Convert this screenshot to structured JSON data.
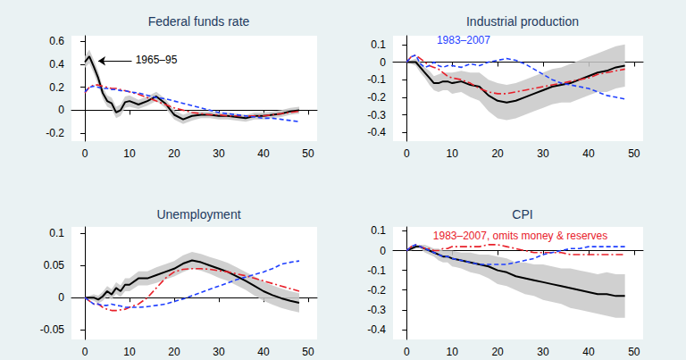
{
  "chart_data": [
    {
      "type": "line",
      "title": "Federal funds rate",
      "x": [
        0,
        1,
        2,
        3,
        4,
        5,
        6,
        7,
        8,
        9,
        10,
        12,
        14,
        16,
        18,
        20,
        22,
        24,
        26,
        28,
        30,
        32,
        34,
        36,
        38,
        40,
        42,
        44,
        46,
        48
      ],
      "xlim": [
        -3,
        52
      ],
      "xticks": [
        0,
        10,
        20,
        30,
        40,
        50
      ],
      "ylim": [
        -0.27,
        0.65
      ],
      "yticks": [
        -0.2,
        0,
        0.2,
        0.4,
        0.6
      ],
      "grid": false,
      "series": [
        {
          "color": "#000000",
          "line_style": "solid",
          "values": [
            0.42,
            0.47,
            0.38,
            0.28,
            0.15,
            0.08,
            0.06,
            -0.02,
            0.0,
            0.07,
            0.08,
            0.05,
            0.08,
            0.12,
            0.06,
            -0.04,
            -0.08,
            -0.05,
            -0.04,
            -0.04,
            -0.05,
            -0.05,
            -0.06,
            -0.07,
            -0.05,
            -0.05,
            -0.04,
            -0.03,
            -0.01,
            0.0
          ],
          "band": {
            "color": "#c8c8c8",
            "lower": [
              0.37,
              0.41,
              0.32,
              0.22,
              0.1,
              0.03,
              0.01,
              -0.07,
              -0.05,
              0.02,
              0.03,
              0.01,
              0.04,
              0.08,
              0.02,
              -0.08,
              -0.12,
              -0.09,
              -0.07,
              -0.07,
              -0.08,
              -0.08,
              -0.09,
              -0.1,
              -0.08,
              -0.08,
              -0.07,
              -0.06,
              -0.04,
              -0.03
            ],
            "upper": [
              0.47,
              0.53,
              0.44,
              0.34,
              0.2,
              0.13,
              0.11,
              0.03,
              0.05,
              0.12,
              0.13,
              0.09,
              0.12,
              0.16,
              0.1,
              0.0,
              -0.04,
              -0.01,
              -0.01,
              -0.01,
              -0.02,
              -0.02,
              -0.03,
              -0.04,
              -0.02,
              -0.02,
              -0.01,
              0.0,
              0.02,
              0.03
            ]
          }
        },
        {
          "color": "#e8202a",
          "line_style": "dashdot",
          "values": [
            0.15,
            0.2,
            0.22,
            0.22,
            0.21,
            0.2,
            0.19,
            0.19,
            0.18,
            0.17,
            0.16,
            0.14,
            0.11,
            0.08,
            0.05,
            0.02,
            0.0,
            -0.02,
            -0.03,
            -0.04,
            -0.04,
            -0.05,
            -0.05,
            -0.05,
            -0.05,
            -0.05,
            -0.04,
            -0.03,
            -0.02,
            -0.01
          ]
        },
        {
          "color": "#1f3fff",
          "line_style": "dashed",
          "values": [
            0.16,
            0.2,
            0.21,
            0.2,
            0.19,
            0.19,
            0.18,
            0.18,
            0.17,
            0.17,
            0.16,
            0.15,
            0.13,
            0.11,
            0.1,
            0.08,
            0.06,
            0.04,
            0.02,
            0.0,
            -0.02,
            -0.03,
            -0.04,
            -0.05,
            -0.06,
            -0.07,
            -0.07,
            -0.08,
            -0.09,
            -0.1
          ]
        }
      ],
      "annotations": [
        {
          "text": "1965–95",
          "x": 16,
          "y": 0.44,
          "color": "#000000",
          "arrow": [
            [
              10.5,
              0.43
            ],
            [
              3,
              0.43
            ]
          ]
        }
      ]
    },
    {
      "type": "line",
      "title": "Industrial production",
      "x": [
        0,
        1,
        2,
        3,
        4,
        5,
        6,
        7,
        8,
        9,
        10,
        12,
        14,
        16,
        18,
        20,
        22,
        24,
        26,
        28,
        30,
        32,
        34,
        36,
        38,
        40,
        42,
        44,
        46,
        48
      ],
      "xlim": [
        -3,
        52
      ],
      "xticks": [
        0,
        10,
        20,
        30,
        40,
        50
      ],
      "ylim": [
        -0.45,
        0.15
      ],
      "yticks": [
        -0.4,
        -0.3,
        -0.2,
        -0.1,
        0,
        0.1
      ],
      "grid": false,
      "series": [
        {
          "color": "#000000",
          "line_style": "solid",
          "values": [
            0,
            0,
            0,
            -0.03,
            -0.06,
            -0.09,
            -0.12,
            -0.12,
            -0.11,
            -0.11,
            -0.12,
            -0.11,
            -0.13,
            -0.14,
            -0.19,
            -0.22,
            -0.23,
            -0.22,
            -0.2,
            -0.18,
            -0.16,
            -0.14,
            -0.13,
            -0.12,
            -0.1,
            -0.08,
            -0.06,
            -0.05,
            -0.03,
            -0.02
          ],
          "band": {
            "color": "#c8c8c8",
            "lower": [
              0,
              -0.01,
              -0.02,
              -0.06,
              -0.09,
              -0.13,
              -0.16,
              -0.17,
              -0.16,
              -0.16,
              -0.18,
              -0.17,
              -0.2,
              -0.22,
              -0.28,
              -0.32,
              -0.33,
              -0.32,
              -0.3,
              -0.28,
              -0.26,
              -0.24,
              -0.23,
              -0.23,
              -0.21,
              -0.19,
              -0.17,
              -0.17,
              -0.15,
              -0.14
            ],
            "upper": [
              0,
              0.01,
              0.02,
              0.0,
              -0.03,
              -0.05,
              -0.08,
              -0.07,
              -0.06,
              -0.06,
              -0.06,
              -0.05,
              -0.06,
              -0.06,
              -0.1,
              -0.12,
              -0.13,
              -0.12,
              -0.1,
              -0.08,
              -0.06,
              -0.04,
              -0.03,
              -0.01,
              0.01,
              0.03,
              0.05,
              0.07,
              0.09,
              0.1
            ]
          }
        },
        {
          "color": "#e8202a",
          "line_style": "dashdot",
          "values": [
            0,
            0.03,
            0.04,
            0.02,
            0.0,
            -0.02,
            -0.03,
            -0.04,
            -0.06,
            -0.08,
            -0.09,
            -0.1,
            -0.12,
            -0.15,
            -0.17,
            -0.18,
            -0.18,
            -0.17,
            -0.16,
            -0.15,
            -0.14,
            -0.13,
            -0.12,
            -0.11,
            -0.1,
            -0.09,
            -0.07,
            -0.06,
            -0.05,
            -0.04
          ]
        },
        {
          "color": "#1f3fff",
          "line_style": "dashed",
          "values": [
            0,
            0.03,
            0.04,
            -0.01,
            -0.03,
            -0.02,
            0.0,
            -0.02,
            -0.03,
            -0.02,
            -0.02,
            -0.03,
            -0.01,
            -0.02,
            0.0,
            0.01,
            0.02,
            0.01,
            -0.01,
            -0.04,
            -0.07,
            -0.1,
            -0.12,
            -0.13,
            -0.14,
            -0.15,
            -0.17,
            -0.19,
            -0.2,
            -0.21
          ]
        }
      ],
      "annotations": [
        {
          "text": "1983–2007",
          "x": 12.5,
          "y": 0.125,
          "color": "#1f3fff"
        }
      ]
    },
    {
      "type": "line",
      "title": "Unemployment",
      "x": [
        0,
        1,
        2,
        3,
        4,
        5,
        6,
        7,
        8,
        9,
        10,
        12,
        14,
        16,
        18,
        20,
        22,
        24,
        26,
        28,
        30,
        32,
        34,
        36,
        38,
        40,
        42,
        44,
        46,
        48
      ],
      "xlim": [
        -3,
        52
      ],
      "xticks": [
        0,
        10,
        20,
        30,
        40,
        50
      ],
      "ylim": [
        -0.065,
        0.11
      ],
      "yticks": [
        -0.05,
        0,
        0.05,
        0.1
      ],
      "grid": false,
      "series": [
        {
          "color": "#000000",
          "line_style": "solid",
          "values": [
            0,
            0,
            0,
            -0.003,
            0.002,
            0.01,
            0.005,
            0.015,
            0.01,
            0.02,
            0.02,
            0.03,
            0.03,
            0.035,
            0.04,
            0.045,
            0.053,
            0.058,
            0.055,
            0.05,
            0.045,
            0.04,
            0.033,
            0.026,
            0.018,
            0.01,
            0.004,
            -0.001,
            -0.005,
            -0.008
          ],
          "band": {
            "color": "#c8c8c8",
            "lower": [
              0,
              -0.003,
              -0.005,
              -0.009,
              -0.005,
              0.002,
              -0.003,
              0.006,
              0.001,
              0.01,
              0.01,
              0.019,
              0.019,
              0.023,
              0.028,
              0.033,
              0.04,
              0.045,
              0.042,
              0.037,
              0.031,
              0.026,
              0.019,
              0.012,
              0.003,
              -0.005,
              -0.011,
              -0.016,
              -0.02,
              -0.023
            ],
            "upper": [
              0,
              0.003,
              0.005,
              0.003,
              0.009,
              0.018,
              0.013,
              0.024,
              0.019,
              0.03,
              0.03,
              0.041,
              0.041,
              0.047,
              0.052,
              0.057,
              0.066,
              0.071,
              0.068,
              0.063,
              0.059,
              0.054,
              0.047,
              0.04,
              0.033,
              0.025,
              0.019,
              0.014,
              0.01,
              0.007
            ]
          }
        },
        {
          "color": "#e8202a",
          "line_style": "dashdot",
          "values": [
            0,
            -0.005,
            -0.01,
            -0.01,
            -0.015,
            -0.018,
            -0.02,
            -0.02,
            -0.019,
            -0.018,
            -0.015,
            -0.01,
            0.0,
            0.015,
            0.03,
            0.04,
            0.044,
            0.045,
            0.045,
            0.044,
            0.042,
            0.04,
            0.037,
            0.034,
            0.03,
            0.026,
            0.022,
            0.018,
            0.014,
            0.01
          ]
        },
        {
          "color": "#1f3fff",
          "line_style": "dashed",
          "values": [
            0,
            -0.005,
            -0.01,
            -0.01,
            -0.012,
            -0.012,
            -0.01,
            -0.012,
            -0.013,
            -0.015,
            -0.015,
            -0.015,
            -0.014,
            -0.012,
            -0.01,
            -0.006,
            -0.002,
            0.003,
            0.008,
            0.013,
            0.018,
            0.023,
            0.028,
            0.032,
            0.036,
            0.04,
            0.045,
            0.052,
            0.055,
            0.057
          ]
        }
      ],
      "annotations": []
    },
    {
      "type": "line",
      "title": "CPI",
      "x": [
        0,
        1,
        2,
        3,
        4,
        5,
        6,
        7,
        8,
        9,
        10,
        12,
        14,
        16,
        18,
        20,
        22,
        24,
        26,
        28,
        30,
        32,
        34,
        36,
        38,
        40,
        42,
        44,
        46,
        48
      ],
      "xlim": [
        -3,
        52
      ],
      "xticks": [
        0,
        10,
        20,
        30,
        40,
        50
      ],
      "ylim": [
        -0.45,
        0.12
      ],
      "yticks": [
        -0.4,
        -0.3,
        -0.2,
        -0.1,
        0,
        0.1
      ],
      "grid": false,
      "series": [
        {
          "color": "#000000",
          "line_style": "solid",
          "values": [
            0,
            0.01,
            0.02,
            0.02,
            0.01,
            0,
            -0.01,
            -0.02,
            -0.03,
            -0.03,
            -0.04,
            -0.05,
            -0.06,
            -0.07,
            -0.08,
            -0.1,
            -0.11,
            -0.13,
            -0.14,
            -0.15,
            -0.16,
            -0.17,
            -0.18,
            -0.19,
            -0.2,
            -0.21,
            -0.22,
            -0.22,
            -0.23,
            -0.23
          ],
          "band": {
            "color": "#c8c8c8",
            "lower": [
              0,
              0,
              0.01,
              0.01,
              -0.01,
              -0.02,
              -0.03,
              -0.05,
              -0.06,
              -0.06,
              -0.08,
              -0.09,
              -0.11,
              -0.12,
              -0.14,
              -0.17,
              -0.18,
              -0.2,
              -0.22,
              -0.23,
              -0.25,
              -0.26,
              -0.27,
              -0.29,
              -0.3,
              -0.31,
              -0.32,
              -0.33,
              -0.34,
              -0.34
            ],
            "upper": [
              0,
              0.02,
              0.03,
              0.03,
              0.03,
              0.02,
              0.01,
              0.01,
              0,
              0,
              0,
              -0.01,
              -0.01,
              -0.02,
              -0.02,
              -0.03,
              -0.04,
              -0.06,
              -0.06,
              -0.07,
              -0.07,
              -0.08,
              -0.09,
              -0.09,
              -0.1,
              -0.11,
              -0.12,
              -0.11,
              -0.12,
              -0.12
            ]
          }
        },
        {
          "color": "#e8202a",
          "line_style": "dashdot",
          "values": [
            0,
            0.02,
            0.03,
            0.02,
            0.01,
            0.01,
            0.0,
            0.0,
            0.01,
            0.01,
            0.02,
            0.02,
            0.02,
            0.02,
            0.03,
            0.03,
            0.02,
            0.01,
            0.0,
            -0.01,
            -0.01,
            -0.01,
            -0.01,
            -0.02,
            -0.02,
            -0.02,
            -0.02,
            -0.02,
            -0.02,
            -0.02
          ]
        },
        {
          "color": "#1f3fff",
          "line_style": "dashed",
          "values": [
            0,
            0.02,
            0.03,
            0.02,
            0.01,
            0.0,
            -0.01,
            -0.02,
            -0.03,
            -0.03,
            -0.04,
            -0.05,
            -0.06,
            -0.07,
            -0.07,
            -0.07,
            -0.07,
            -0.06,
            -0.05,
            -0.04,
            -0.02,
            -0.01,
            0.0,
            0.01,
            0.01,
            0.02,
            0.02,
            0.02,
            0.02,
            0.02
          ]
        }
      ],
      "annotations": [
        {
          "text": "1983–2007, omits money & reserves",
          "x": 25,
          "y": 0.075,
          "color": "#e8202a"
        }
      ]
    }
  ]
}
